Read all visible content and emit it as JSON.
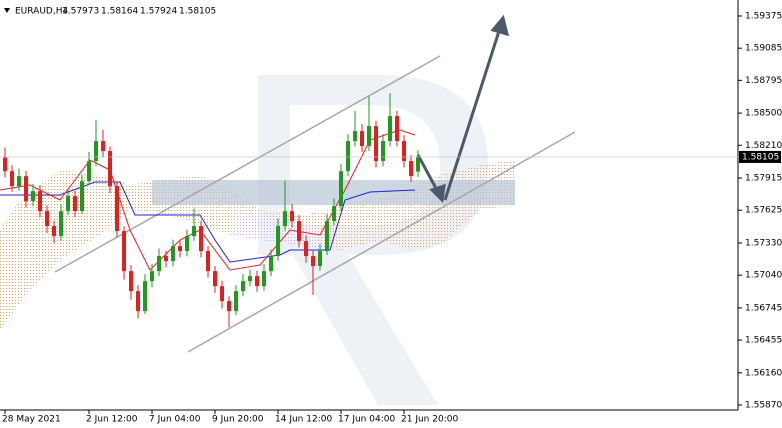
{
  "chart_data": {
    "type": "candlestick",
    "symbol": "EURAUD,H4",
    "up_color": "#1f9a1f",
    "down_color": "#e01f1f",
    "ylim": [
      1.55825,
      1.59519
    ],
    "yticks": [
      1.59375,
      {
        "value": 1.59085,
        "label": "1.59085"
      },
      {
        "value": 1.58795,
        "label": "1.58795"
      },
      {
        "value": 1.585,
        "label": "1.58500"
      },
      {
        "value": 1.5821,
        "label": "1.58210"
      },
      {
        "value": 1.57915,
        "label": "1.57915"
      },
      {
        "value": 1.57625,
        "label": "1.57625"
      },
      {
        "value": 1.5733,
        "label": "1.57330"
      },
      {
        "value": 1.5704,
        "label": "1.57040"
      },
      {
        "value": 1.56745,
        "label": "1.56745"
      },
      {
        "value": 1.56455,
        "label": "1.56455"
      },
      {
        "value": 1.5616,
        "label": "1.56160"
      },
      {
        "value": 1.5587,
        "label": "1.55870"
      }
    ],
    "categories": [
      "28 May 2021",
      null,
      null,
      null,
      null,
      null,
      null,
      null,
      null,
      null,
      null,
      null,
      "2 Jun 12:00",
      null,
      null,
      null,
      null,
      null,
      null,
      null,
      null,
      "7 Jun 04:00",
      null,
      null,
      null,
      null,
      null,
      null,
      null,
      null,
      "9 Jun 20:00",
      null,
      null,
      null,
      null,
      null,
      null,
      null,
      null,
      "14 Jun 12:00",
      null,
      null,
      null,
      null,
      null,
      null,
      null,
      null,
      "17 Jun 04:00",
      null,
      null,
      null,
      null,
      null,
      null,
      null,
      null,
      "21 Jun 20:00",
      null,
      null
    ],
    "open": [
      1.581,
      1.57977,
      1.57842,
      1.57932,
      1.57707,
      1.57797,
      1.57617,
      1.57482,
      1.57392,
      1.57617,
      1.57752,
      1.57617,
      1.57887,
      1.58068,
      1.58248,
      1.58158,
      1.57842,
      1.57437,
      1.57076,
      1.56896,
      1.56716,
      1.56986,
      1.57076,
      1.57212,
      1.57167,
      1.57302,
      1.57257,
      1.57392,
      1.57482,
      1.57257,
      1.57076,
      1.56941,
      1.56806,
      1.56716,
      1.56896,
      1.56986,
      1.57031,
      1.56941,
      1.57076,
      1.57212,
      1.57482,
      1.57617,
      1.57527,
      1.57347,
      1.57212,
      1.57122,
      1.57257,
      1.57527,
      1.57662,
      1.57977,
      1.58248,
      1.58338,
      1.58203,
      1.58383,
      1.58068,
      1.58248,
      1.58473,
      1.58248,
      1.58068,
      1.57973
    ],
    "high": [
      1.5819,
      1.5803,
      1.58,
      1.5798,
      1.5786,
      1.5785,
      1.5767,
      1.5753,
      1.5768,
      1.5781,
      1.578,
      1.5794,
      1.5815,
      1.5844,
      1.5835,
      1.582,
      1.5788,
      1.5748,
      1.5713,
      1.5695,
      1.5705,
      1.5714,
      1.5728,
      1.5726,
      1.5736,
      1.5735,
      1.5745,
      1.5764,
      1.5753,
      1.573,
      1.5712,
      1.5699,
      1.5685,
      1.5695,
      1.5705,
      1.5709,
      1.5708,
      1.5714,
      1.5727,
      1.5755,
      1.5789,
      1.5768,
      1.5758,
      1.574,
      1.5726,
      1.5732,
      1.5759,
      1.5773,
      1.5804,
      1.5831,
      1.5852,
      1.584,
      1.5865,
      1.5843,
      1.5831,
      1.5868,
      1.5852,
      1.583,
      1.5812,
      1.58164
    ],
    "low": [
      1.5792,
      1.5779,
      1.578,
      1.5765,
      1.5766,
      1.5756,
      1.5742,
      1.5733,
      1.5735,
      1.5758,
      1.5756,
      1.5759,
      1.5785,
      1.5802,
      1.581,
      1.5778,
      1.5738,
      1.57,
      1.5682,
      1.5665,
      1.5669,
      1.5693,
      1.5703,
      1.5711,
      1.5712,
      1.572,
      1.5721,
      1.5735,
      1.572,
      1.5702,
      1.5688,
      1.5674,
      1.5657,
      1.5668,
      1.5685,
      1.5694,
      1.5689,
      1.569,
      1.5703,
      1.5717,
      1.5744,
      1.5747,
      1.5729,
      1.5715,
      1.5686,
      1.5708,
      1.5722,
      1.5749,
      1.5762,
      1.5793,
      1.582,
      1.5815,
      1.5816,
      1.5801,
      1.5802,
      1.582,
      1.582,
      1.5801,
      1.5788,
      1.57924
    ],
    "close": [
      1.57977,
      1.57842,
      1.57932,
      1.57707,
      1.57797,
      1.57617,
      1.57482,
      1.57392,
      1.57617,
      1.57752,
      1.57617,
      1.57887,
      1.58068,
      1.58248,
      1.58158,
      1.57842,
      1.57437,
      1.57076,
      1.56896,
      1.56716,
      1.56986,
      1.57076,
      1.57212,
      1.57167,
      1.57302,
      1.57257,
      1.57392,
      1.57482,
      1.57257,
      1.57076,
      1.56941,
      1.56806,
      1.56716,
      1.56896,
      1.56986,
      1.57031,
      1.56941,
      1.57076,
      1.57212,
      1.57482,
      1.57617,
      1.57527,
      1.57347,
      1.57212,
      1.57122,
      1.57257,
      1.57527,
      1.57662,
      1.57977,
      1.58248,
      1.58338,
      1.58203,
      1.58383,
      1.58068,
      1.58248,
      1.58473,
      1.58248,
      1.58068,
      1.57932,
      1.58105
    ]
  }
}
